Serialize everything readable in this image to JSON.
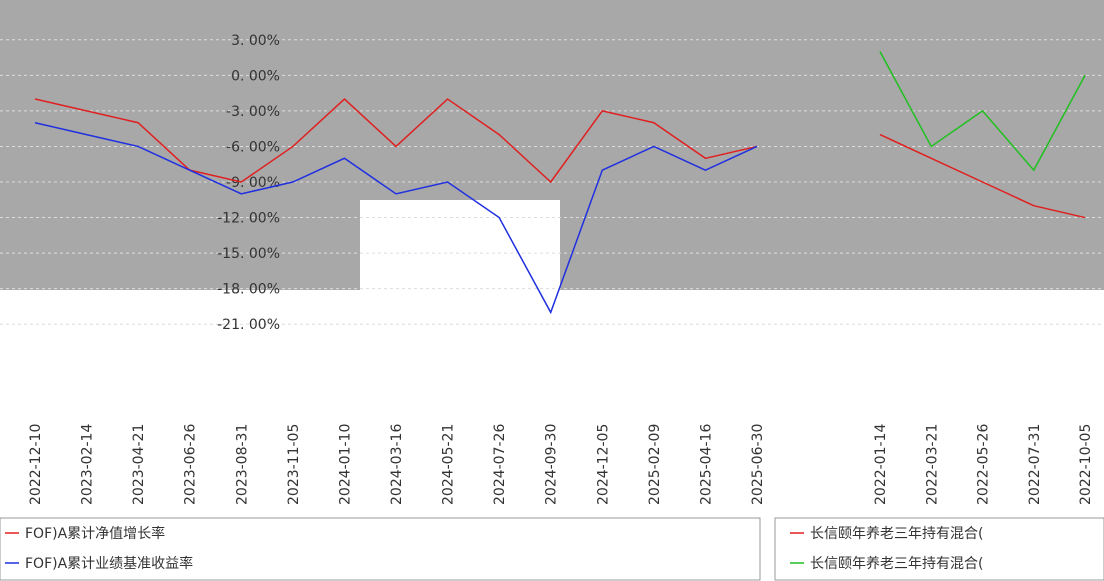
{
  "chart_data": [
    {
      "type": "line",
      "categories": [
        "2022-12-10",
        "2023-02-14",
        "2023-04-21",
        "2023-06-26",
        "2023-08-31",
        "2023-11-05",
        "2024-01-10",
        "2024-03-16",
        "2024-05-21",
        "2024-07-26",
        "2024-09-30",
        "2024-12-05",
        "2025-02-09",
        "2025-04-16",
        "2025-06-30"
      ],
      "series": [
        {
          "name": "FOF)A累计净值增长率",
          "color": "#e02020",
          "values": [
            -2,
            -3,
            -4,
            -8,
            -9,
            -6,
            -2,
            -6,
            -2,
            -5,
            -9,
            -3,
            -4,
            -7,
            -6
          ]
        },
        {
          "name": "FOF)A累计业绩基准收益率",
          "color": "#2030e0",
          "values": [
            -4,
            -5,
            -6,
            -8,
            -10,
            -9,
            -7,
            -10,
            -9,
            -12,
            -20,
            -8,
            -6,
            -8,
            -6
          ]
        }
      ],
      "ylim": [
        -22.5,
        4.5
      ],
      "yticks": [
        {
          "value": 3,
          "label": "3. 00%"
        },
        {
          "value": 0,
          "label": "0. 00%"
        },
        {
          "value": -3,
          "label": "-3. 00%"
        },
        {
          "value": -6,
          "label": "-6. 00%"
        },
        {
          "value": -9,
          "label": "-9. 00%"
        },
        {
          "value": -12,
          "label": "-12. 00%"
        },
        {
          "value": -15,
          "label": "-15. 00%"
        },
        {
          "value": -18,
          "label": "-18. 00%"
        },
        {
          "value": -21,
          "label": "-21. 00%"
        }
      ],
      "grid": true
    },
    {
      "type": "line",
      "categories": [
        "2022-01-14",
        "2022-03-21",
        "2022-05-26",
        "2022-07-31",
        "2022-10-05"
      ],
      "series": [
        {
          "name": "长信颐年养老三年持有混合(",
          "color": "#e02020",
          "values": [
            -5,
            -7,
            -9,
            -11,
            -12
          ]
        },
        {
          "name": "长信颐年养老三年持有混合(",
          "color": "#20c020",
          "values": [
            2,
            -6,
            -3,
            -8,
            0
          ]
        }
      ],
      "ylim": [
        -22.5,
        4.5
      ]
    }
  ]
}
